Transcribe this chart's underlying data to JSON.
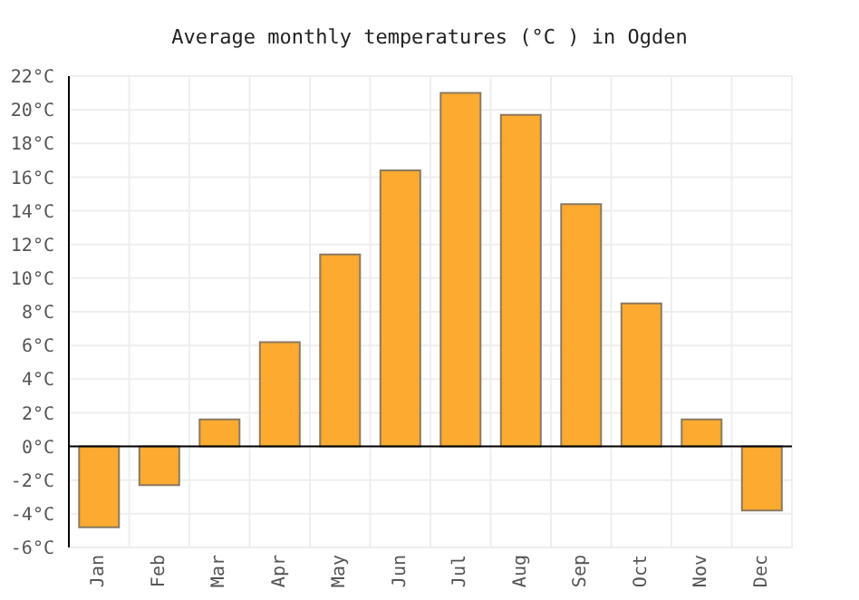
{
  "chart_data": {
    "type": "bar",
    "title": "Average monthly temperatures (°C ) in Ogden",
    "categories": [
      "Jan",
      "Feb",
      "Mar",
      "Apr",
      "May",
      "Jun",
      "Jul",
      "Aug",
      "Sep",
      "Oct",
      "Nov",
      "Dec"
    ],
    "values": [
      -4.8,
      -2.3,
      1.6,
      6.2,
      11.4,
      16.4,
      21.0,
      19.7,
      14.4,
      8.5,
      1.6,
      -3.8
    ],
    "color": "#fdaa30",
    "ylim": [
      -6,
      22
    ],
    "yticks": [
      {
        "value": -6,
        "label": "-6°C"
      },
      {
        "value": -4,
        "label": "-4°C"
      },
      {
        "value": -2,
        "label": "-2°C"
      },
      {
        "value": 0,
        "label": "0°C"
      },
      {
        "value": 2,
        "label": "2°C"
      },
      {
        "value": 4,
        "label": "4°C"
      },
      {
        "value": 6,
        "label": "6°C"
      },
      {
        "value": 8,
        "label": "8°C"
      },
      {
        "value": 10,
        "label": "10°C"
      },
      {
        "value": 12,
        "label": "12°C"
      },
      {
        "value": 14,
        "label": "14°C"
      },
      {
        "value": 16,
        "label": "16°C"
      },
      {
        "value": 18,
        "label": "18°C"
      },
      {
        "value": 20,
        "label": "20°C"
      },
      {
        "value": 22,
        "label": "22°C"
      }
    ],
    "ref_lines": [
      {
        "axis": "y",
        "value": 0,
        "color": "#000000"
      }
    ],
    "grid": true
  }
}
